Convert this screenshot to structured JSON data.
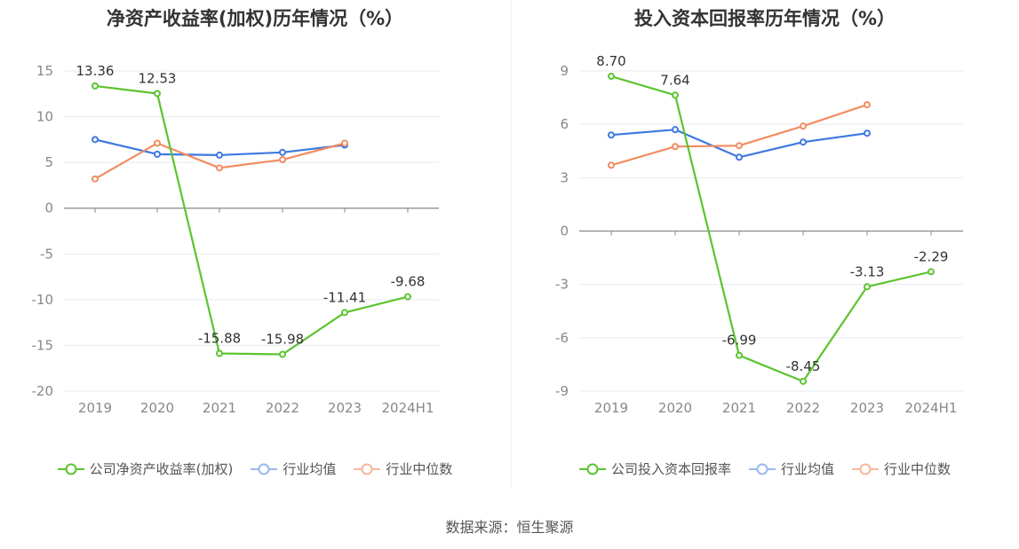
{
  "colors": {
    "company": "#5cc430",
    "avg": "#3d78e0",
    "median": "#f28c61"
  },
  "source": "数据来源：恒生聚源",
  "chart_data": [
    {
      "type": "line",
      "title": "净资产收益率(加权)历年情况（%）",
      "categories": [
        "2019",
        "2020",
        "2021",
        "2022",
        "2023",
        "2024H1"
      ],
      "ylim": [
        -20,
        15
      ],
      "yticks": [
        15,
        10,
        5,
        0,
        -5,
        -10,
        -15,
        -20
      ],
      "grid": true,
      "legend_position": "bottom",
      "series": [
        {
          "name": "公司净资产收益率(加权)",
          "key": "company",
          "values": [
            13.36,
            12.53,
            -15.88,
            -15.98,
            -11.41,
            -9.68
          ],
          "labels": [
            "13.36",
            "12.53",
            "-15.88",
            "-15.98",
            "-11.41",
            "-9.68"
          ]
        },
        {
          "name": "行业均值",
          "key": "avg",
          "values": [
            7.5,
            5.9,
            5.8,
            6.1,
            6.9,
            null
          ]
        },
        {
          "name": "行业中位数",
          "key": "median",
          "values": [
            3.2,
            7.1,
            4.4,
            5.3,
            7.1,
            null
          ]
        }
      ]
    },
    {
      "type": "line",
      "title": "投入资本回报率历年情况（%）",
      "categories": [
        "2019",
        "2020",
        "2021",
        "2022",
        "2023",
        "2024H1"
      ],
      "ylim": [
        -9,
        9
      ],
      "yticks": [
        9,
        6,
        3,
        0,
        -3,
        -6,
        -9
      ],
      "grid": true,
      "legend_position": "bottom",
      "series": [
        {
          "name": "公司投入资本回报率",
          "key": "company",
          "values": [
            8.7,
            7.64,
            -6.99,
            -8.45,
            -3.13,
            -2.29
          ],
          "labels": [
            "8.70",
            "7.64",
            "-6.99",
            "-8.45",
            "-3.13",
            "-2.29"
          ]
        },
        {
          "name": "行业均值",
          "key": "avg",
          "values": [
            5.4,
            5.7,
            4.15,
            5.0,
            5.5,
            null
          ]
        },
        {
          "name": "行业中位数",
          "key": "median",
          "values": [
            3.7,
            4.75,
            4.8,
            5.9,
            7.1,
            null
          ]
        }
      ]
    }
  ]
}
